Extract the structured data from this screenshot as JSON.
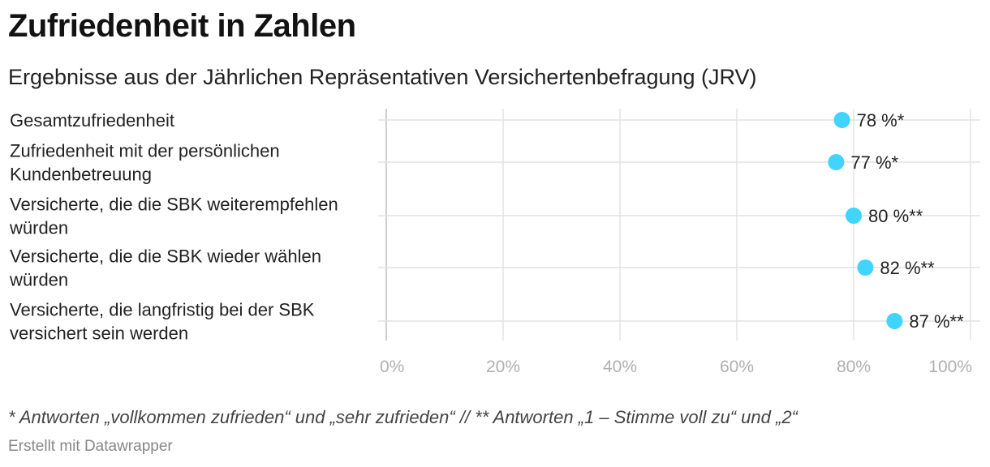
{
  "header": {
    "title": "Zufriedenheit in Zahlen",
    "subtitle": "Ergebnisse aus der Jährlichen Repräsentativen Versichertenbefragung (JRV)"
  },
  "chart_data": {
    "type": "dot",
    "title": "Zufriedenheit in Zahlen",
    "subtitle": "Ergebnisse aus der Jährlichen Repräsentativen Versichertenbefragung (JRV)",
    "xlabel": "",
    "ylabel": "",
    "xlim": [
      0,
      100
    ],
    "ticks": [
      0,
      20,
      40,
      60,
      80,
      100
    ],
    "tick_labels": [
      "0%",
      "20%",
      "40%",
      "60%",
      "80%",
      "100%"
    ],
    "dot_color": "#40d4ff",
    "grid": true,
    "categories": [
      [
        "Gesamtzufriedenheit"
      ],
      [
        "Zufriedenheit mit der persönlichen",
        "Kundenbetreuung"
      ],
      [
        "Versicherte, die die SBK weiterempfehlen",
        "würden"
      ],
      [
        "Versicherte, die die SBK wieder wählen",
        "würden"
      ],
      [
        "Versicherte, die langfristig bei der SBK",
        "versichert sein werden"
      ]
    ],
    "values": [
      78,
      77,
      80,
      82,
      87
    ],
    "value_labels": [
      "78 %*",
      "77 %*",
      "80 %**",
      "82 %**",
      "87 %**"
    ]
  },
  "footer": {
    "note": "* Antworten „vollkommen zufrieden“ und „sehr zufrieden“ // ** Antworten „1 – Stimme voll zu“ und „2“",
    "source": "Erstellt mit Datawrapper"
  }
}
